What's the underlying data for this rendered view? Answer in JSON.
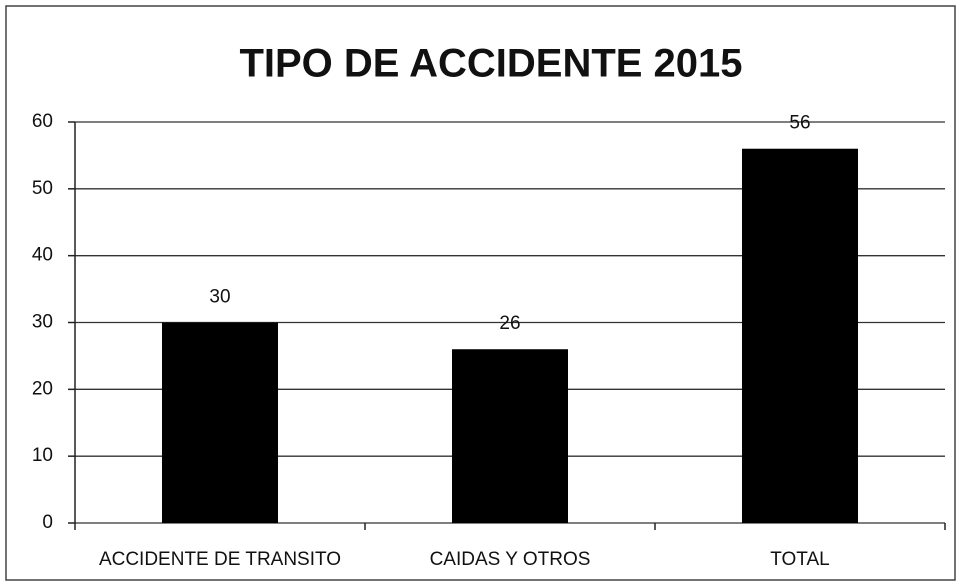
{
  "chart_data": {
    "type": "bar",
    "title": "TIPO DE ACCIDENTE 2015",
    "categories": [
      "ACCIDENTE DE TRANSITO",
      "CAIDAS Y OTROS",
      "TOTAL"
    ],
    "values": [
      30,
      26,
      56
    ],
    "color": "#000000",
    "ylim": [
      0,
      60
    ],
    "yticks": [
      0,
      10,
      20,
      30,
      40,
      50,
      60
    ],
    "grid": true
  }
}
